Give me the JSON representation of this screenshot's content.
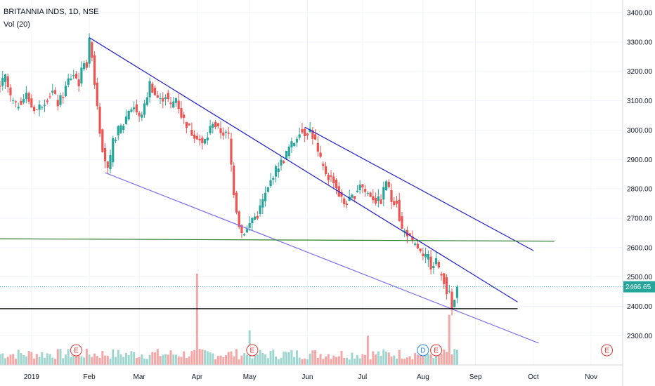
{
  "legend": {
    "title": "BRITANNIA INDS, 1D, NSE",
    "indicator": "Vol (20)"
  },
  "colors": {
    "up": "#26a69a",
    "down": "#ef5350",
    "vol_up": "#9fd6cf",
    "vol_down": "#f4a7a6",
    "trendline_dark": "#2222cc",
    "trendline_light": "#7b6cf0",
    "support_green": "#2e7d32",
    "support_black": "#000000",
    "price_line": "#26a69a",
    "earnings": "#e53935",
    "dividend": "#1e88e5"
  },
  "chart_data": {
    "type": "candlestick",
    "title": "BRITANNIA INDS, 1D, NSE",
    "price_axis": {
      "range": [
        2200,
        3450
      ],
      "ticks": [
        "3400.00",
        "3300.00",
        "3200.00",
        "3100.00",
        "3000.00",
        "2900.00",
        "2800.00",
        "2700.00",
        "2600.00",
        "2500.00",
        "2400.00",
        "2300.00"
      ],
      "tick_values": [
        3400,
        3300,
        3200,
        3100,
        3000,
        2900,
        2800,
        2700,
        2600,
        2500,
        2400,
        2300
      ]
    },
    "time_axis": {
      "labels": [
        "2019",
        "Feb",
        "Mar",
        "Apr",
        "May",
        "Jun",
        "Jul",
        "Aug",
        "Sep",
        "Oct",
        "Nov"
      ],
      "label_days": [
        0,
        22,
        41,
        63,
        83,
        105,
        126,
        149,
        169,
        191,
        213
      ],
      "range_days": [
        -12,
        225
      ]
    },
    "last_price": 2466.65,
    "last_price_label": "2466.65",
    "close_series": [
      [
        -12,
        3150
      ],
      [
        -10,
        3180
      ],
      [
        -8,
        3110
      ],
      [
        -6,
        3080
      ],
      [
        -4,
        3100
      ],
      [
        -2,
        3120
      ],
      [
        0,
        3080
      ],
      [
        2,
        3070
      ],
      [
        4,
        3090
      ],
      [
        6,
        3110
      ],
      [
        8,
        3130
      ],
      [
        10,
        3090
      ],
      [
        12,
        3120
      ],
      [
        14,
        3170
      ],
      [
        16,
        3190
      ],
      [
        18,
        3160
      ],
      [
        20,
        3240
      ],
      [
        21,
        3220
      ],
      [
        22,
        3300
      ],
      [
        23,
        3260
      ],
      [
        24,
        3160
      ],
      [
        25,
        3090
      ],
      [
        26,
        3000
      ],
      [
        27,
        2940
      ],
      [
        28,
        2900
      ],
      [
        29,
        2860
      ],
      [
        30,
        2900
      ],
      [
        31,
        2960
      ],
      [
        33,
        3000
      ],
      [
        35,
        3020
      ],
      [
        37,
        3070
      ],
      [
        39,
        3080
      ],
      [
        41,
        3040
      ],
      [
        43,
        3080
      ],
      [
        45,
        3160
      ],
      [
        47,
        3120
      ],
      [
        49,
        3100
      ],
      [
        51,
        3120
      ],
      [
        53,
        3080
      ],
      [
        55,
        3110
      ],
      [
        57,
        3050
      ],
      [
        59,
        3020
      ],
      [
        61,
        2990
      ],
      [
        63,
        2980
      ],
      [
        65,
        2950
      ],
      [
        67,
        2980
      ],
      [
        69,
        3030
      ],
      [
        71,
        3000
      ],
      [
        73,
        2990
      ],
      [
        75,
        2980
      ],
      [
        76,
        2880
      ],
      [
        77,
        2790
      ],
      [
        78,
        2730
      ],
      [
        79,
        2680
      ],
      [
        80,
        2650
      ],
      [
        82,
        2660
      ],
      [
        84,
        2700
      ],
      [
        86,
        2710
      ],
      [
        88,
        2760
      ],
      [
        90,
        2800
      ],
      [
        92,
        2850
      ],
      [
        94,
        2880
      ],
      [
        96,
        2900
      ],
      [
        98,
        2940
      ],
      [
        100,
        2960
      ],
      [
        102,
        3000
      ],
      [
        104,
        2990
      ],
      [
        106,
        3000
      ],
      [
        108,
        2960
      ],
      [
        109,
        2920
      ],
      [
        111,
        2870
      ],
      [
        113,
        2840
      ],
      [
        115,
        2830
      ],
      [
        117,
        2780
      ],
      [
        119,
        2750
      ],
      [
        121,
        2760
      ],
      [
        123,
        2780
      ],
      [
        125,
        2820
      ],
      [
        127,
        2790
      ],
      [
        129,
        2780
      ],
      [
        131,
        2760
      ],
      [
        133,
        2760
      ],
      [
        135,
        2830
      ],
      [
        137,
        2760
      ],
      [
        139,
        2760
      ],
      [
        140,
        2700
      ],
      [
        141,
        2660
      ],
      [
        143,
        2650
      ],
      [
        145,
        2610
      ],
      [
        147,
        2600
      ],
      [
        149,
        2560
      ],
      [
        151,
        2570
      ],
      [
        152,
        2540
      ],
      [
        154,
        2560
      ],
      [
        155,
        2520
      ],
      [
        157,
        2490
      ],
      [
        158,
        2450
      ],
      [
        159,
        2440
      ],
      [
        160,
        2390
      ],
      [
        161,
        2420
      ],
      [
        162,
        2466.65
      ]
    ],
    "volume_spikes": [
      {
        "day": 63,
        "value": 1.0
      },
      {
        "day": 83,
        "value": 0.38
      },
      {
        "day": 128,
        "value": 0.32
      },
      {
        "day": 159,
        "value": 0.55
      }
    ],
    "trendlines": [
      {
        "name": "upper-channel-1",
        "from": [
          22,
          3315
        ],
        "to": [
          185,
          2415
        ]
      },
      {
        "name": "lower-channel-1",
        "from": [
          28,
          2855
        ],
        "to": [
          193,
          2275
        ]
      },
      {
        "name": "upper-channel-2",
        "from": [
          104,
          3010
        ],
        "to": [
          191,
          2590
        ]
      },
      {
        "name": "support-2620",
        "from": [
          -12,
          2630
        ],
        "to": [
          199,
          2622
        ]
      },
      {
        "name": "support-2390",
        "from": [
          -12,
          2392
        ],
        "to": [
          185,
          2392
        ]
      }
    ],
    "events": [
      {
        "type": "E",
        "day": 17
      },
      {
        "type": "E",
        "day": 84
      },
      {
        "type": "D",
        "day": 149
      },
      {
        "type": "E",
        "day": 154
      },
      {
        "type": "E",
        "day": 219
      }
    ]
  }
}
